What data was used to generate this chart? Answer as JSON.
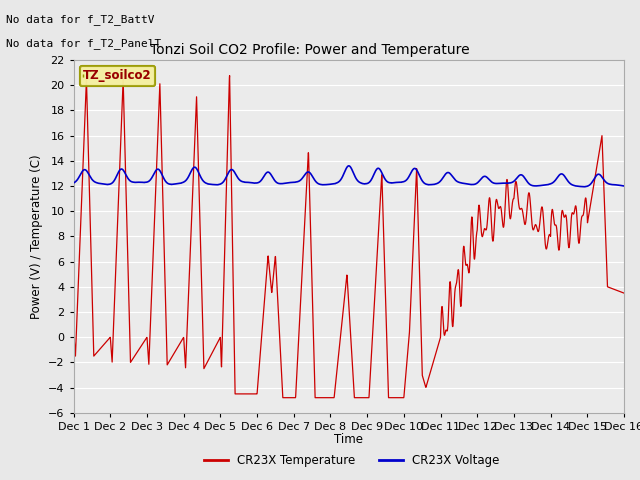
{
  "title": "Tonzi Soil CO2 Profile: Power and Temperature",
  "ylabel": "Power (V) / Temperature (C)",
  "xlabel": "Time",
  "top_left_text1": "No data for f_T2_BattV",
  "top_left_text2": "No data for f_T2_PanelT",
  "legend_box_label": "TZ_soilco2",
  "legend_items": [
    "CR23X Temperature",
    "CR23X Voltage"
  ],
  "legend_colors": [
    "#cc0000",
    "#0000cc"
  ],
  "ylim": [
    -6,
    22
  ],
  "yticks": [
    -6,
    -4,
    -2,
    0,
    2,
    4,
    6,
    8,
    10,
    12,
    14,
    16,
    18,
    20,
    22
  ],
  "bg_color": "#e8e8e8",
  "plot_bg_color": "#ebebeb",
  "grid_color": "#ffffff",
  "temp_color": "#cc0000",
  "volt_color": "#0000cc",
  "figsize": [
    6.4,
    4.8
  ],
  "dpi": 100
}
